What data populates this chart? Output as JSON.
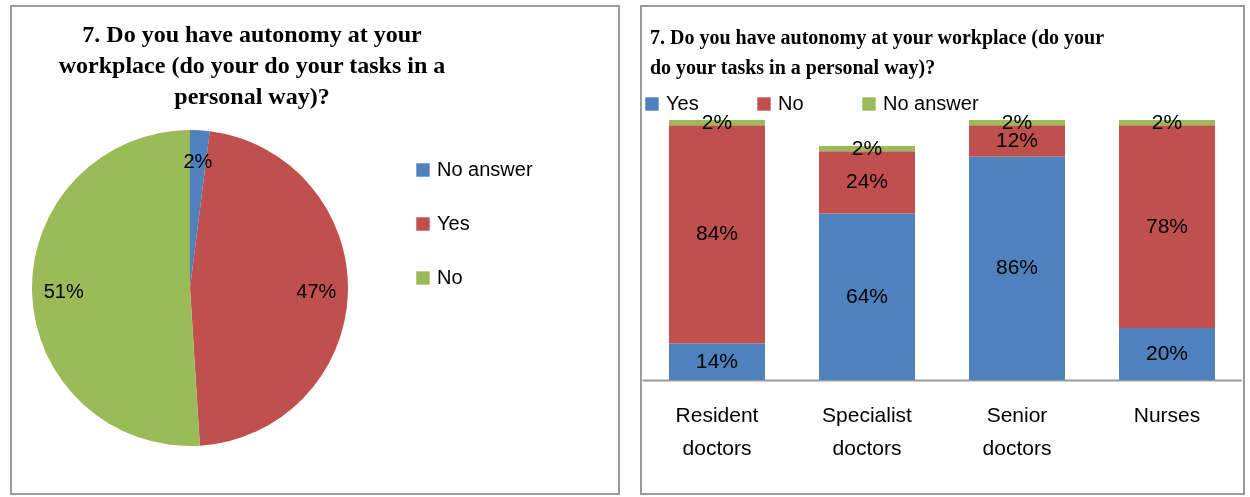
{
  "chart_data": [
    {
      "type": "pie",
      "title": "7. Do you have autonomy at your workplace (do your do your tasks in a personal way)?",
      "categories": [
        "No answer",
        "Yes",
        "No"
      ],
      "values": [
        2,
        47,
        51
      ],
      "colors": [
        "#4f81bd",
        "#c0504d",
        "#9bbb59"
      ],
      "value_labels": [
        "2%",
        "47%",
        "51%"
      ],
      "legend": "right"
    },
    {
      "type": "bar",
      "title": "7. Do you have autonomy at your workplace (do your do your tasks in a personal way)?",
      "categories": [
        "Resident doctors",
        "Specialist doctors",
        "Senior doctors",
        "Nurses"
      ],
      "stacked": true,
      "legend": "top",
      "tick_labels": "x",
      "series": [
        {
          "name": "Yes",
          "color": "#4f81bd",
          "values": [
            14,
            64,
            86,
            20
          ],
          "value_labels": [
            "14%",
            "64%",
            "86%",
            "20%"
          ]
        },
        {
          "name": "No",
          "color": "#c0504d",
          "values": [
            84,
            24,
            12,
            78
          ],
          "value_labels": [
            "84%",
            "24%",
            "12%",
            "78%"
          ]
        },
        {
          "name": "No answer",
          "color": "#9bbb59",
          "values": [
            2,
            2,
            2,
            2
          ],
          "value_labels": [
            "2%",
            "2%",
            "2%",
            "2%"
          ]
        }
      ]
    }
  ]
}
